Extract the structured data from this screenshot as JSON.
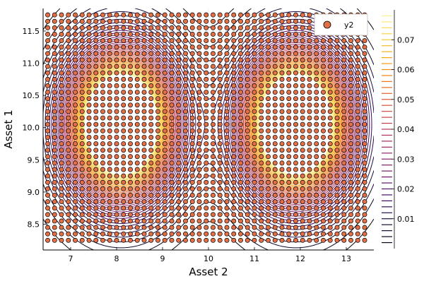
{
  "chart_data": {
    "type": "contour+scatter",
    "xlabel": "Asset 2",
    "ylabel": "Asset 1",
    "xlim": [
      6.4,
      13.6
    ],
    "ylim": [
      8.1,
      11.85
    ],
    "xticks": [
      7,
      8,
      9,
      10,
      11,
      12,
      13
    ],
    "yticks": [
      8.5,
      9.0,
      9.5,
      10.0,
      10.5,
      11.0,
      11.5
    ],
    "ytick_labels": [
      "8.5",
      "9.0",
      "9.5",
      "10.0",
      "10.5",
      "11.0",
      "11.5"
    ],
    "grid": true,
    "legend": {
      "position": "top-right",
      "entries": [
        {
          "label": "y2",
          "marker": "circle",
          "color": "#e26f46"
        }
      ]
    },
    "scatter": {
      "name": "y2",
      "color": "#e26f46",
      "x_start": 6.5,
      "x_end": 13.4,
      "x_step": 0.15,
      "y_start": 8.25,
      "y_end": 11.75,
      "y_step": 0.1
    },
    "contour": {
      "function": "mixture of two gaussians",
      "components": [
        {
          "mean": [
            8.1,
            10.05
          ],
          "std": [
            0.78,
            0.77
          ]
        },
        {
          "mean": [
            11.9,
            10.05
          ],
          "std": [
            0.78,
            0.77
          ]
        }
      ],
      "levels": [
        0.002,
        0.004,
        0.006,
        0.008,
        0.01,
        0.012,
        0.014,
        0.016,
        0.018,
        0.02,
        0.022,
        0.024,
        0.026,
        0.028,
        0.03,
        0.032,
        0.034,
        0.036,
        0.038,
        0.04,
        0.042,
        0.044,
        0.046,
        0.048,
        0.05,
        0.052,
        0.054,
        0.056,
        0.058,
        0.06,
        0.062,
        0.064,
        0.066,
        0.068,
        0.07,
        0.072,
        0.074,
        0.076,
        0.078
      ]
    },
    "colorbar": {
      "ticks": [
        0.01,
        0.02,
        0.03,
        0.04,
        0.05,
        0.06,
        0.07
      ],
      "tick_labels": [
        "0.01",
        "0.02",
        "0.03",
        "0.04",
        "0.05",
        "0.06",
        "0.07"
      ],
      "range": [
        0.0,
        0.08
      ],
      "colormap": "inferno"
    }
  }
}
